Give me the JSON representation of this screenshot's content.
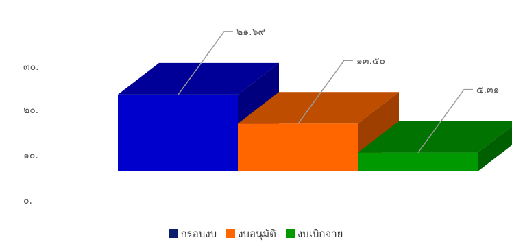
{
  "chart_data": {
    "type": "bar",
    "title": "",
    "xlabel": "",
    "ylabel": "",
    "ylim": [
      0,
      30
    ],
    "yticks": [
      "๐.",
      "๑๐.",
      "๒๐.",
      "๓๐."
    ],
    "grid": false,
    "legend_position": "bottom",
    "three_d": true,
    "categories": [
      "กรอบงบ",
      "งบอนุมัติ",
      "งบเบิกจ่าย"
    ],
    "values": [
      21.69,
      13.5,
      5.31
    ],
    "value_labels": [
      "๒๑.๖๙",
      "๑๓.๕๐",
      "๕.๓๑"
    ],
    "colors": [
      "#0000cc",
      "#ff6600",
      "#009900"
    ],
    "legend": [
      {
        "label": "กรอบงบ",
        "color": "#0a1f6b"
      },
      {
        "label": "งบอนุมัติ",
        "color": "#ff6600"
      },
      {
        "label": "งบเบิกจ่าย",
        "color": "#009900"
      }
    ]
  }
}
